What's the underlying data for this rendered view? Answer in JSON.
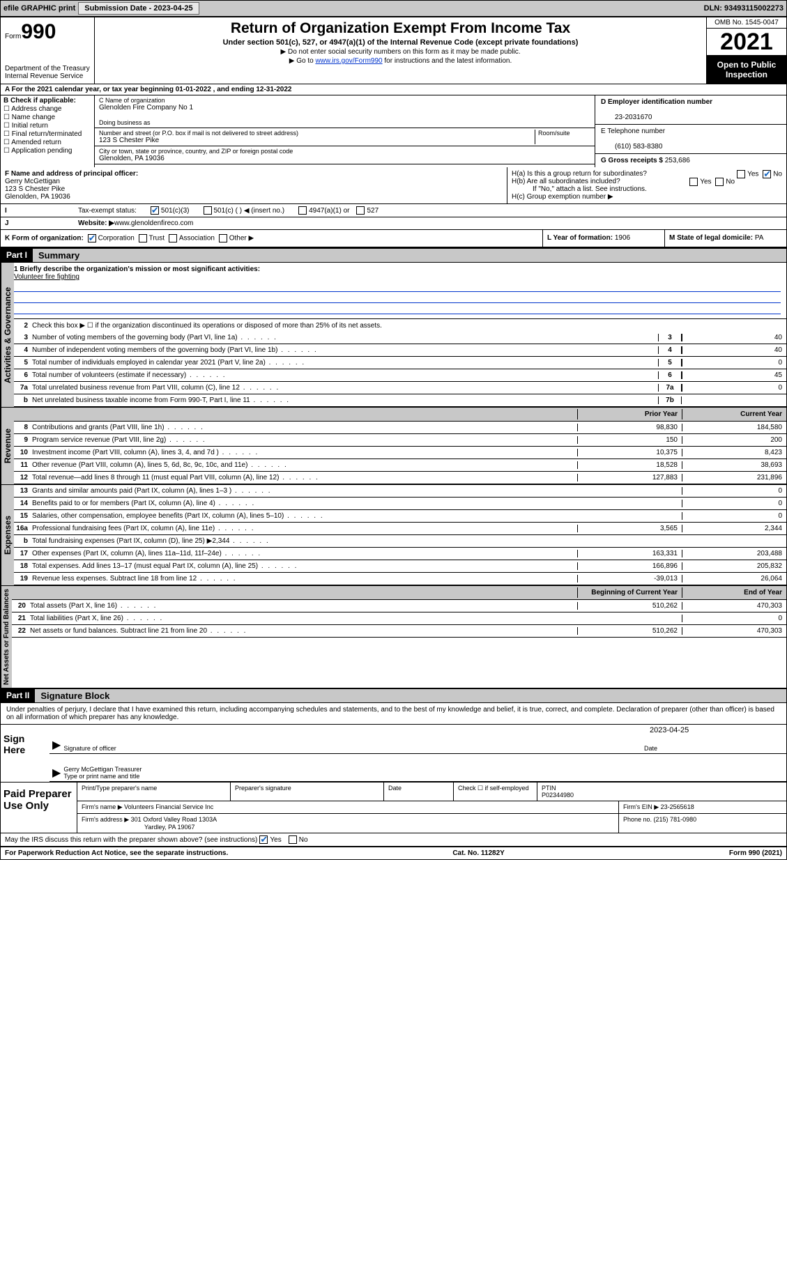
{
  "topbar": {
    "efile": "efile GRAPHIC print",
    "subdate_label": "Submission Date - ",
    "subdate": "2023-04-25",
    "dln_label": "DLN: ",
    "dln": "93493115002273"
  },
  "header": {
    "form_word": "Form",
    "form_num": "990",
    "dept": "Department of the Treasury",
    "irs": "Internal Revenue Service",
    "title": "Return of Organization Exempt From Income Tax",
    "sub1": "Under section 501(c), 527, or 4947(a)(1) of the Internal Revenue Code (except private foundations)",
    "sub2": "▶ Do not enter social security numbers on this form as it may be made public.",
    "sub3_pre": "▶ Go to ",
    "sub3_link": "www.irs.gov/Form990",
    "sub3_post": " for instructions and the latest information.",
    "omb": "OMB No. 1545-0047",
    "year": "2021",
    "public": "Open to Public Inspection"
  },
  "rowA": {
    "pre": "A For the 2021 calendar year, or tax year beginning ",
    "begin": "01-01-2022",
    "mid": " , and ending ",
    "end": "12-31-2022"
  },
  "colB": {
    "label": "B Check if applicable:",
    "items": [
      "Address change",
      "Name change",
      "Initial return",
      "Final return/terminated",
      "Amended return",
      "Application pending"
    ]
  },
  "nameblock": {
    "c_label": "C Name of organization",
    "org": "Glenolden Fire Company No 1",
    "dba_label": "Doing business as",
    "addr_label": "Number and street (or P.O. box if mail is not delivered to street address)",
    "room_label": "Room/suite",
    "addr": "123 S Chester Pike",
    "city_label": "City or town, state or province, country, and ZIP or foreign postal code",
    "city": "Glenolden, PA  19036"
  },
  "colD": {
    "d_label": "D Employer identification number",
    "ein": "23-2031670",
    "e_label": "E Telephone number",
    "phone": "(610) 583-8380",
    "g_label": "G Gross receipts $ ",
    "gross": "253,686"
  },
  "F": {
    "label": "F Name and address of principal officer:",
    "name": "Gerry McGettigan",
    "addr1": "123 S Chester Pike",
    "addr2": "Glenolden, PA  19036"
  },
  "H": {
    "ha": "H(a)  Is this a group return for subordinates?",
    "hb": "H(b)  Are all subordinates included?",
    "hb_note": "If \"No,\" attach a list. See instructions.",
    "hc": "H(c)  Group exemption number ▶",
    "yes": "Yes",
    "no": "No"
  },
  "I": {
    "label": "Tax-exempt status:",
    "opts": [
      "501(c)(3)",
      "501(c) (  ) ◀ (insert no.)",
      "4947(a)(1) or",
      "527"
    ]
  },
  "J": {
    "label": "Website: ▶ ",
    "val": "www.glenoldenfireco.com"
  },
  "K": {
    "label": "K Form of organization:",
    "opts": [
      "Corporation",
      "Trust",
      "Association",
      "Other ▶"
    ]
  },
  "L": {
    "label": "L Year of formation: ",
    "val": "1906"
  },
  "M": {
    "label": "M State of legal domicile: ",
    "val": "PA"
  },
  "part1": {
    "num": "Part I",
    "title": "Summary"
  },
  "mission": {
    "q": "1  Briefly describe the organization's mission or most significant activities:",
    "text": "Volunteer fire fighting"
  },
  "activities": {
    "l2": "Check this box ▶ ☐  if the organization discontinued its operations or disposed of more than 25% of its net assets.",
    "rows": [
      {
        "n": "3",
        "d": "Number of voting members of the governing body (Part VI, line 1a)",
        "box": "3",
        "v": "40"
      },
      {
        "n": "4",
        "d": "Number of independent voting members of the governing body (Part VI, line 1b)",
        "box": "4",
        "v": "40"
      },
      {
        "n": "5",
        "d": "Total number of individuals employed in calendar year 2021 (Part V, line 2a)",
        "box": "5",
        "v": "0"
      },
      {
        "n": "6",
        "d": "Total number of volunteers (estimate if necessary)",
        "box": "6",
        "v": "45"
      },
      {
        "n": "7a",
        "d": "Total unrelated business revenue from Part VIII, column (C), line 12",
        "box": "7a",
        "v": "0"
      },
      {
        "n": "b",
        "d": "Net unrelated business taxable income from Form 990-T, Part I, line 11",
        "box": "7b",
        "v": ""
      }
    ]
  },
  "twocol_hdr": {
    "prior": "Prior Year",
    "current": "Current Year"
  },
  "revenue": [
    {
      "n": "8",
      "d": "Contributions and grants (Part VIII, line 1h)",
      "p": "98,830",
      "c": "184,580"
    },
    {
      "n": "9",
      "d": "Program service revenue (Part VIII, line 2g)",
      "p": "150",
      "c": "200"
    },
    {
      "n": "10",
      "d": "Investment income (Part VIII, column (A), lines 3, 4, and 7d )",
      "p": "10,375",
      "c": "8,423"
    },
    {
      "n": "11",
      "d": "Other revenue (Part VIII, column (A), lines 5, 6d, 8c, 9c, 10c, and 11e)",
      "p": "18,528",
      "c": "38,693"
    },
    {
      "n": "12",
      "d": "Total revenue—add lines 8 through 11 (must equal Part VIII, column (A), line 12)",
      "p": "127,883",
      "c": "231,896"
    }
  ],
  "expenses": [
    {
      "n": "13",
      "d": "Grants and similar amounts paid (Part IX, column (A), lines 1–3 )",
      "p": "",
      "c": "0"
    },
    {
      "n": "14",
      "d": "Benefits paid to or for members (Part IX, column (A), line 4)",
      "p": "",
      "c": "0"
    },
    {
      "n": "15",
      "d": "Salaries, other compensation, employee benefits (Part IX, column (A), lines 5–10)",
      "p": "",
      "c": "0"
    },
    {
      "n": "16a",
      "d": "Professional fundraising fees (Part IX, column (A), line 11e)",
      "p": "3,565",
      "c": "2,344"
    },
    {
      "n": "b",
      "d": "Total fundraising expenses (Part IX, column (D), line 25) ▶2,344",
      "p": "",
      "c": "",
      "gray": true
    },
    {
      "n": "17",
      "d": "Other expenses (Part IX, column (A), lines 11a–11d, 11f–24e)",
      "p": "163,331",
      "c": "203,488"
    },
    {
      "n": "18",
      "d": "Total expenses. Add lines 13–17 (must equal Part IX, column (A), line 25)",
      "p": "166,896",
      "c": "205,832"
    },
    {
      "n": "19",
      "d": "Revenue less expenses. Subtract line 18 from line 12",
      "p": "-39,013",
      "c": "26,064"
    }
  ],
  "balance_hdr": {
    "begin": "Beginning of Current Year",
    "end": "End of Year"
  },
  "balance": [
    {
      "n": "20",
      "d": "Total assets (Part X, line 16)",
      "p": "510,262",
      "c": "470,303"
    },
    {
      "n": "21",
      "d": "Total liabilities (Part X, line 26)",
      "p": "",
      "c": "0"
    },
    {
      "n": "22",
      "d": "Net assets or fund balances. Subtract line 21 from line 20",
      "p": "510,262",
      "c": "470,303"
    }
  ],
  "part2": {
    "num": "Part II",
    "title": "Signature Block"
  },
  "penalty": "Under penalties of perjury, I declare that I have examined this return, including accompanying schedules and statements, and to the best of my knowledge and belief, it is true, correct, and complete. Declaration of preparer (other than officer) is based on all information of which preparer has any knowledge.",
  "sign": {
    "label": "Sign Here",
    "sig_officer": "Signature of officer",
    "date_label": "Date",
    "date": "2023-04-25",
    "name": "Gerry McGettigan  Treasurer",
    "name_label": "Type or print name and title"
  },
  "paid": {
    "label": "Paid Preparer Use Only",
    "c1": "Print/Type preparer's name",
    "c2": "Preparer's signature",
    "c3": "Date",
    "c4_pre": "Check ☐ if self-employed",
    "c5": "PTIN",
    "ptin": "P02344980",
    "firm_label": "Firm's name   ▶",
    "firm": "Volunteers Financial Service Inc",
    "ein_label": "Firm's EIN ▶",
    "ein": "23-2565618",
    "addr_label": "Firm's address ▶",
    "addr1": "301 Oxford Valley Road 1303A",
    "addr2": "Yardley, PA  19067",
    "phone_label": "Phone no. ",
    "phone": "(215) 781-0980"
  },
  "discuss": {
    "q": "May the IRS discuss this return with the preparer shown above? (see instructions)",
    "yes": "Yes",
    "no": "No"
  },
  "footer": {
    "left": "For Paperwork Reduction Act Notice, see the separate instructions.",
    "mid": "Cat. No. 11282Y",
    "right": "Form 990 (2021)"
  },
  "sidelabels": {
    "act": "Activities & Governance",
    "rev": "Revenue",
    "exp": "Expenses",
    "bal": "Net Assets or Fund Balances"
  }
}
